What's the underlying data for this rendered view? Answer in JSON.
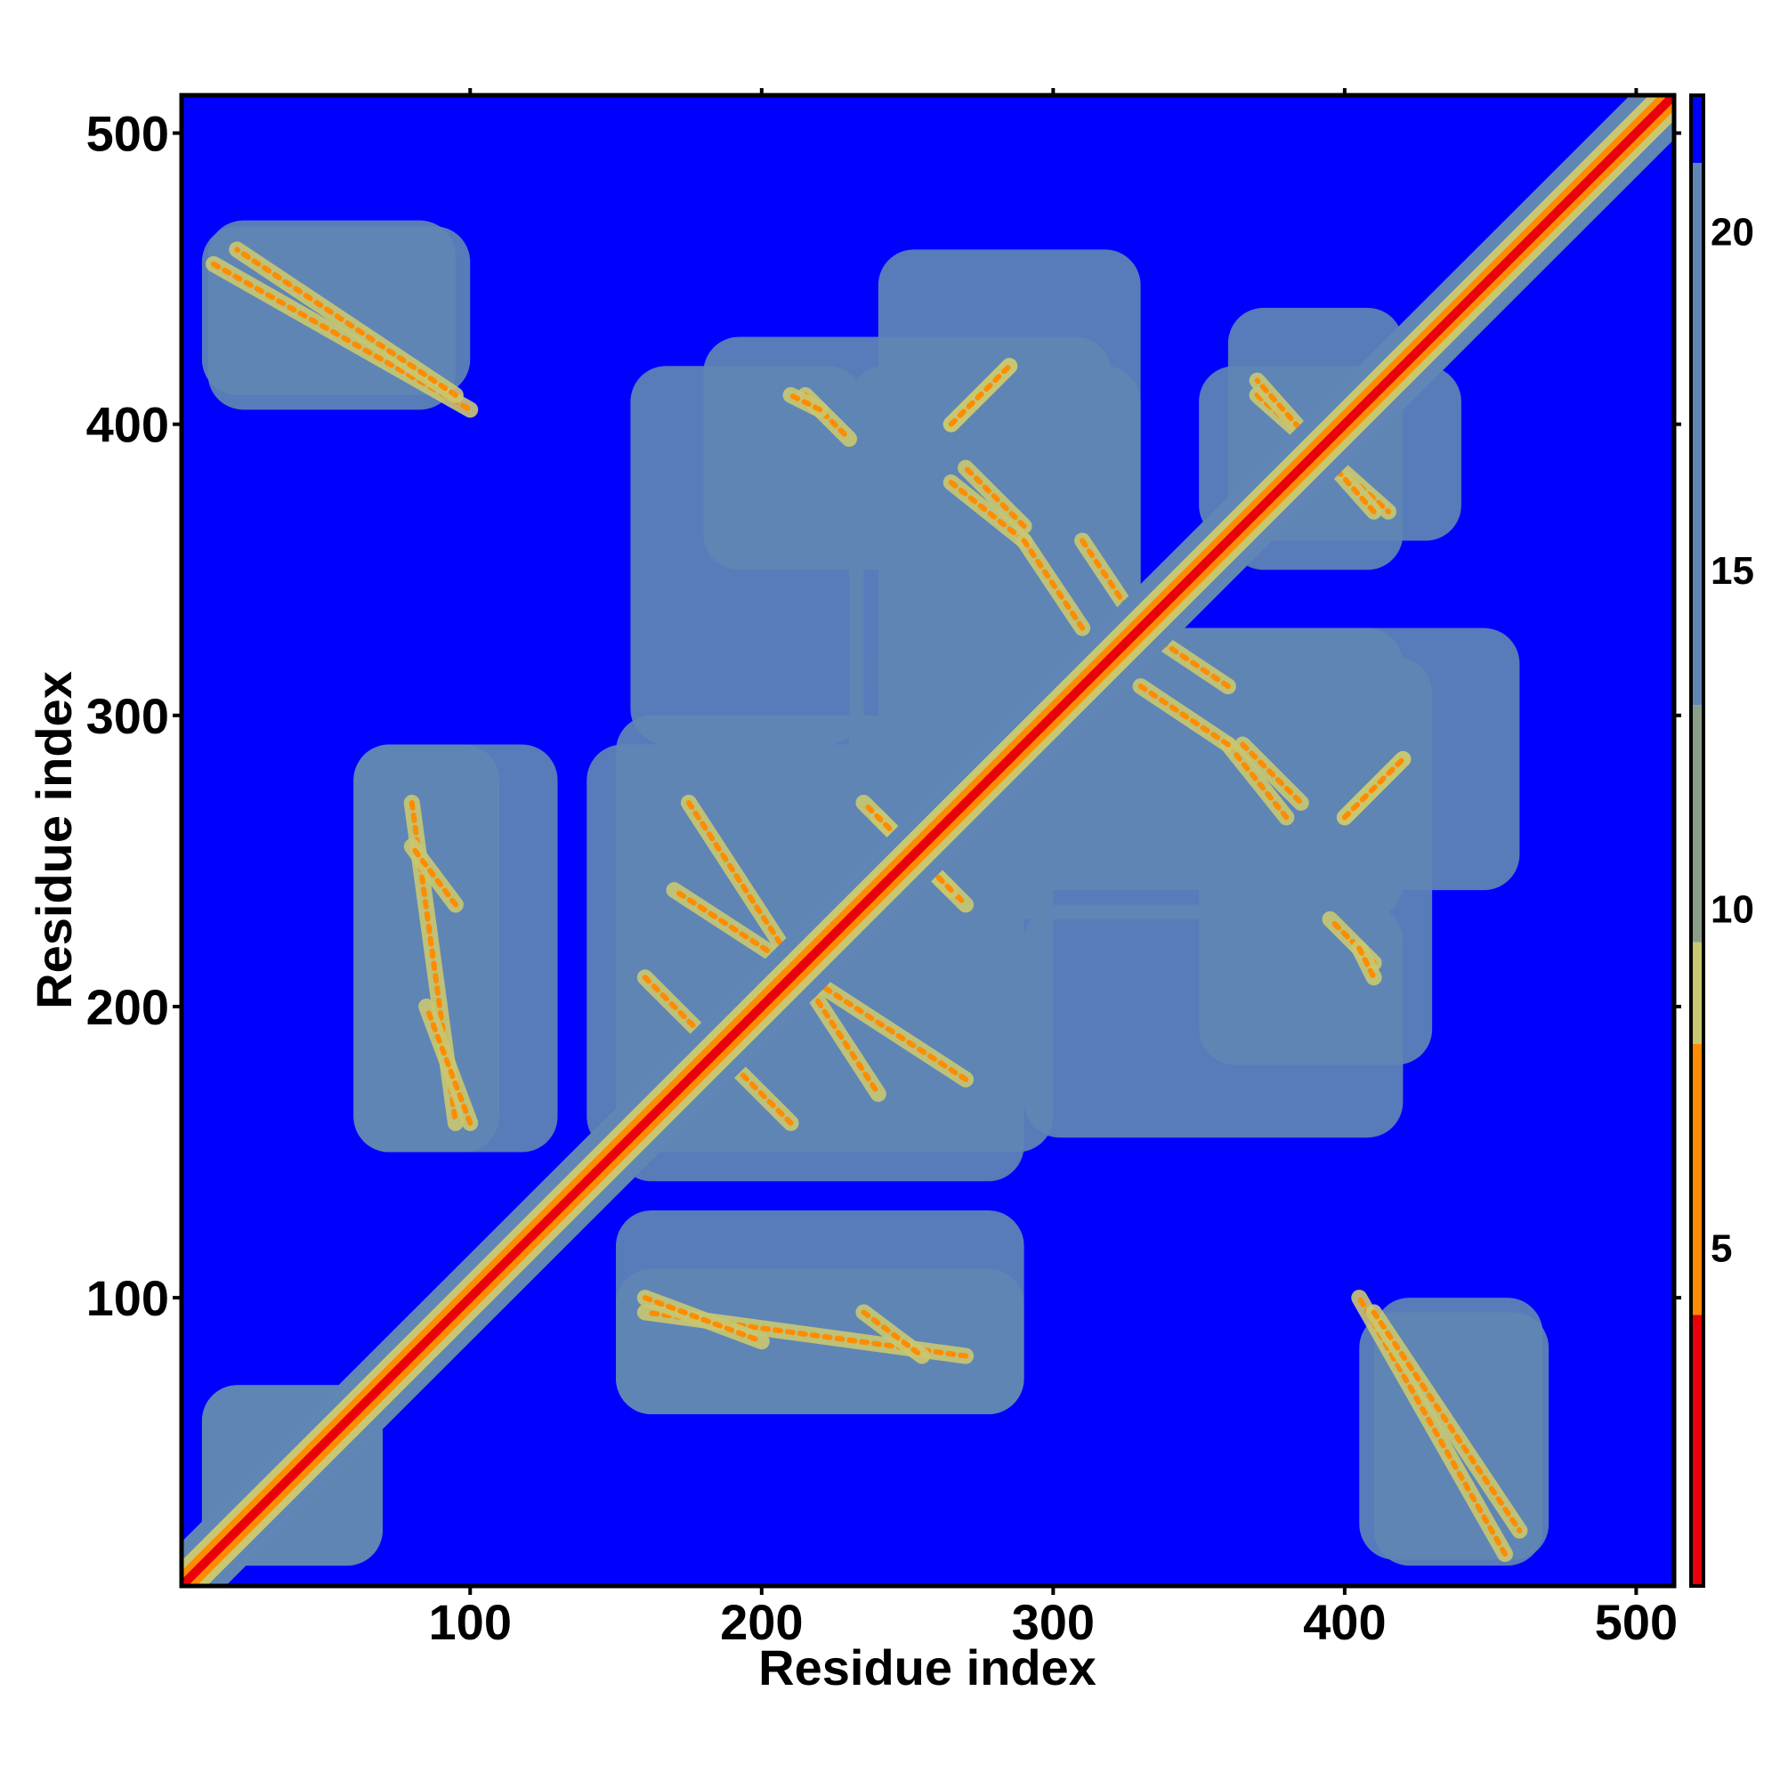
{
  "chart_data": {
    "type": "heatmap",
    "title": "",
    "xlabel": "Residue index",
    "ylabel": "Residue index",
    "xlim": [
      1,
      513
    ],
    "ylim": [
      1,
      513
    ],
    "x_ticks": [
      100,
      200,
      300,
      400,
      500
    ],
    "y_ticks": [
      100,
      200,
      300,
      400,
      500
    ],
    "x_tick_labels": [
      "100",
      "200",
      "300",
      "400",
      "500"
    ],
    "y_tick_labels": [
      "100",
      "200",
      "300",
      "400",
      "500"
    ],
    "value_description": "pairwise residue distance map, symmetric about the diagonal",
    "colorbar": {
      "range": [
        0,
        22
      ],
      "ticks": [
        5,
        10,
        15,
        20
      ],
      "tick_labels": [
        "5",
        "10",
        "15",
        "20"
      ],
      "bands": [
        {
          "from": 0,
          "to": 4,
          "color": "#e8000b"
        },
        {
          "from": 4,
          "to": 8,
          "color": "#ff8c00"
        },
        {
          "from": 8,
          "to": 9.5,
          "color": "#c9c872"
        },
        {
          "from": 9.5,
          "to": 13,
          "color": "#8a9f8a"
        },
        {
          "from": 13,
          "to": 21,
          "color": "#5f86b4"
        },
        {
          "from": 21,
          "to": 22,
          "color": "#0000ff"
        }
      ]
    },
    "colors": {
      "background": "#0000ff",
      "contact_region": "#5f86b4",
      "near": "#c9c872",
      "close": "#ff8c00",
      "very_close": "#e8000b"
    },
    "contact_regions": [
      {
        "x": [
          8,
          100
        ],
        "y": [
          410,
          468
        ]
      },
      {
        "x": [
          60,
          130
        ],
        "y": [
          150,
          290
        ]
      },
      {
        "x": [
          140,
          300
        ],
        "y": [
          150,
          290
        ]
      },
      {
        "x": [
          150,
          290
        ],
        "y": [
          60,
          110
        ]
      },
      {
        "x": [
          230,
          330
        ],
        "y": [
          240,
          420
        ]
      },
      {
        "x": [
          300,
          460
        ],
        "y": [
          240,
          330
        ]
      },
      {
        "x": [
          290,
          420
        ],
        "y": [
          155,
          235
        ]
      },
      {
        "x": [
          350,
          440
        ],
        "y": [
          360,
          420
        ]
      },
      {
        "x": [
          405,
          470
        ],
        "y": [
          10,
          95
        ]
      },
      {
        "x": [
          180,
          320
        ],
        "y": [
          350,
          430
        ]
      },
      {
        "x": [
          8,
          70
        ],
        "y": [
          8,
          70
        ]
      }
    ],
    "contact_lines": [
      {
        "x": [
          12,
          100
        ],
        "y": [
          455,
          405
        ]
      },
      {
        "x": [
          80,
          95
        ],
        "y": [
          270,
          160
        ]
      },
      {
        "x": [
          160,
          190
        ],
        "y": [
          210,
          180
        ]
      },
      {
        "x": [
          175,
          240
        ],
        "y": [
          270,
          170
        ]
      },
      {
        "x": [
          240,
          270
        ],
        "y": [
          265,
          235
        ]
      },
      {
        "x": [
          215,
          230
        ],
        "y": [
          410,
          395
        ]
      },
      {
        "x": [
          265,
          285
        ],
        "y": [
          400,
          420
        ]
      },
      {
        "x": [
          265,
          290
        ],
        "y": [
          380,
          360
        ]
      },
      {
        "x": [
          310,
          330
        ],
        "y": [
          360,
          330
        ]
      },
      {
        "x": [
          330,
          360
        ],
        "y": [
          310,
          290
        ]
      },
      {
        "x": [
          365,
          385
        ],
        "y": [
          290,
          270
        ]
      },
      {
        "x": [
          400,
          420
        ],
        "y": [
          265,
          285
        ]
      },
      {
        "x": [
          405,
          410
        ],
        "y": [
          220,
          210
        ]
      },
      {
        "x": [
          370,
          415
        ],
        "y": [
          410,
          370
        ]
      },
      {
        "x": [
          410,
          460
        ],
        "y": [
          95,
          20
        ]
      },
      {
        "x": [
          160,
          200
        ],
        "y": [
          100,
          85
        ]
      },
      {
        "x": [
          235,
          255
        ],
        "y": [
          95,
          80
        ]
      }
    ]
  }
}
